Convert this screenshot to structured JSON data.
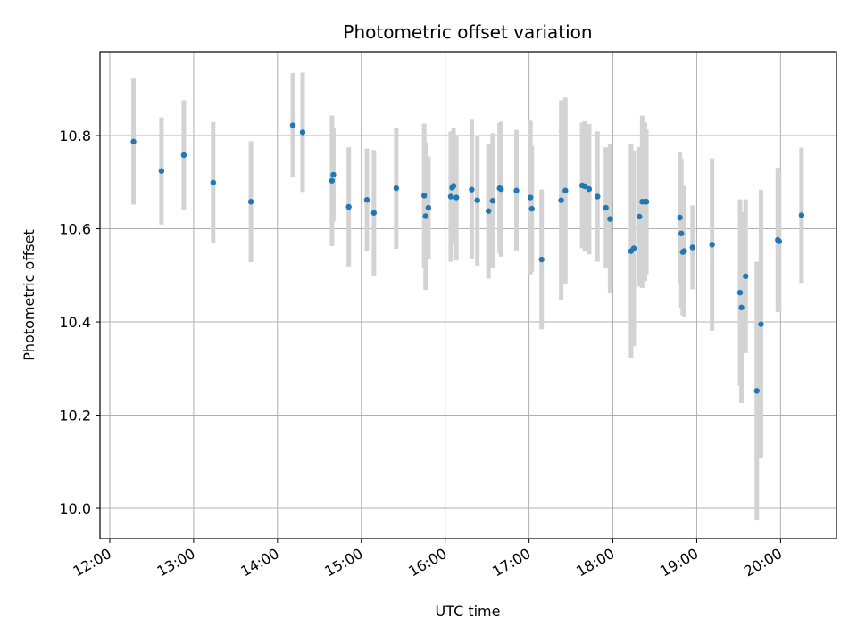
{
  "chart_data": {
    "type": "scatter",
    "title": "Photometric offset variation",
    "xlabel": "UTC time",
    "ylabel": "Photometric offset",
    "xlim": [
      "11:53",
      "20:40"
    ],
    "ylim": [
      9.935,
      10.98
    ],
    "yticks": [
      10.0,
      10.2,
      10.4,
      10.6,
      10.8
    ],
    "xticks": [
      "12:00",
      "13:00",
      "14:00",
      "15:00",
      "16:00",
      "17:00",
      "18:00",
      "19:00",
      "20:00"
    ],
    "grid": true,
    "colors": {
      "point": "#1f77b4",
      "errorbar": "#d3d3d3",
      "grid": "#b0b0b0"
    },
    "series": [
      {
        "x": [
          "12:17",
          "12:37",
          "12:53",
          "13:14",
          "13:41",
          "14:11",
          "14:18",
          "14:39",
          "14:40",
          "14:51",
          "15:04",
          "15:09",
          "15:25",
          "15:45",
          "15:46",
          "15:48",
          "16:04",
          "16:05",
          "16:06",
          "16:08",
          "16:19",
          "16:23",
          "16:31",
          "16:34",
          "16:39",
          "16:40",
          "16:51",
          "17:01",
          "17:02",
          "17:09",
          "17:23",
          "17:26",
          "17:38",
          "17:40",
          "17:43",
          "17:49",
          "17:55",
          "17:58",
          "18:13",
          "18:15",
          "18:19",
          "18:21",
          "18:23",
          "18:24",
          "18:48",
          "18:49",
          "18:50",
          "18:51",
          "18:57",
          "19:11",
          "19:31",
          "19:32",
          "19:35",
          "19:43",
          "19:46",
          "19:58",
          "19:59",
          "20:15"
        ],
        "y": [
          10.787,
          10.724,
          10.758,
          10.699,
          10.658,
          10.822,
          10.807,
          10.703,
          10.716,
          10.647,
          10.662,
          10.634,
          10.687,
          10.671,
          10.627,
          10.645,
          10.669,
          10.688,
          10.692,
          10.667,
          10.684,
          10.661,
          10.638,
          10.66,
          10.687,
          10.685,
          10.682,
          10.667,
          10.643,
          10.534,
          10.661,
          10.682,
          10.693,
          10.691,
          10.685,
          10.669,
          10.645,
          10.621,
          10.552,
          10.558,
          10.626,
          10.658,
          10.658,
          10.658,
          10.624,
          10.59,
          10.55,
          10.552,
          10.56,
          10.566,
          10.463,
          10.431,
          10.498,
          10.252,
          10.395,
          10.576,
          10.573,
          10.629
        ],
        "yerr": [
          0.135,
          0.115,
          0.118,
          0.13,
          0.13,
          0.112,
          0.128,
          0.14,
          0.1,
          0.128,
          0.11,
          0.135,
          0.13,
          0.155,
          0.158,
          0.11,
          0.14,
          0.115,
          0.125,
          0.135,
          0.15,
          0.14,
          0.145,
          0.145,
          0.14,
          0.145,
          0.13,
          0.165,
          0.135,
          0.15,
          0.215,
          0.2,
          0.135,
          0.14,
          0.14,
          0.14,
          0.13,
          0.16,
          0.23,
          0.21,
          0.15,
          0.185,
          0.17,
          0.155,
          0.14,
          0.16,
          0.135,
          0.14,
          0.09,
          0.185,
          0.2,
          0.205,
          0.165,
          0.277,
          0.288,
          0.155,
          0.15,
          0.145
        ]
      }
    ]
  }
}
